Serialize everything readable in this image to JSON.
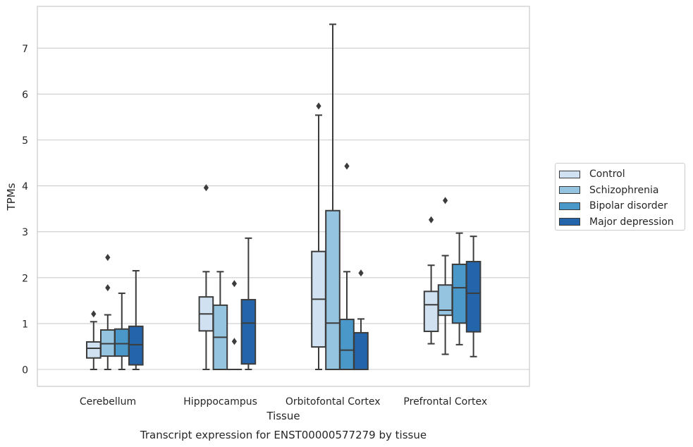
{
  "chart_data": {
    "type": "box",
    "title": "Transcript expression for ENST00000577279 by tissue",
    "xlabel": "Tissue",
    "ylabel": "TPMs",
    "ylim": [
      -0.35,
      7.85
    ],
    "yticks": [
      0,
      1,
      2,
      3,
      4,
      5,
      6,
      7
    ],
    "grid": true,
    "legend_position": "right",
    "categories": [
      "Cerebellum",
      "Hipppocampus",
      "Orbitofontal Cortex",
      "Prefrontal Cortex"
    ],
    "series": [
      {
        "name": "Control",
        "color": "#d0e1f2",
        "boxes": [
          {
            "whislo": 0.0,
            "q1": 0.25,
            "med": 0.46,
            "q3": 0.6,
            "whishi": 1.04,
            "fliers": [
              1.21
            ]
          },
          {
            "whislo": 0.0,
            "q1": 0.84,
            "med": 1.21,
            "q3": 1.58,
            "whishi": 2.13,
            "fliers": [
              3.96
            ]
          },
          {
            "whislo": 0.0,
            "q1": 0.49,
            "med": 1.53,
            "q3": 2.57,
            "whishi": 5.54,
            "fliers": [
              5.74
            ]
          },
          {
            "whislo": 0.56,
            "q1": 0.83,
            "med": 1.41,
            "q3": 1.7,
            "whishi": 2.27,
            "fliers": [
              3.26
            ]
          }
        ]
      },
      {
        "name": "Schizophrenia",
        "color": "#94c4df",
        "boxes": [
          {
            "whislo": 0.0,
            "q1": 0.29,
            "med": 0.56,
            "q3": 0.86,
            "whishi": 1.19,
            "fliers": [
              1.78,
              2.44
            ]
          },
          {
            "whislo": 0.0,
            "q1": 0.0,
            "med": 0.7,
            "q3": 1.4,
            "whishi": 2.13,
            "fliers": []
          },
          {
            "whislo": 0.0,
            "q1": 0.0,
            "med": 1.01,
            "q3": 3.46,
            "whishi": 7.52,
            "fliers": []
          },
          {
            "whislo": 0.33,
            "q1": 1.18,
            "med": 1.29,
            "q3": 1.84,
            "whishi": 2.48,
            "fliers": [
              3.68
            ]
          }
        ]
      },
      {
        "name": "Bipolar disorder",
        "color": "#4a98c9",
        "boxes": [
          {
            "whislo": 0.0,
            "q1": 0.29,
            "med": 0.56,
            "q3": 0.88,
            "whishi": 1.66,
            "fliers": []
          },
          {
            "whislo": 0.0,
            "q1": 0.0,
            "med": 0.0,
            "q3": 0.0,
            "whishi": 0.0,
            "fliers": [
              0.61,
              1.87
            ]
          },
          {
            "whislo": 0.0,
            "q1": 0.0,
            "med": 0.42,
            "q3": 1.09,
            "whishi": 2.13,
            "fliers": [
              4.43
            ]
          },
          {
            "whislo": 0.54,
            "q1": 1.01,
            "med": 1.78,
            "q3": 2.29,
            "whishi": 2.97,
            "fliers": []
          }
        ]
      },
      {
        "name": "Major depression",
        "color": "#2364aa",
        "boxes": [
          {
            "whislo": 0.0,
            "q1": 0.1,
            "med": 0.54,
            "q3": 0.94,
            "whishi": 2.15,
            "fliers": []
          },
          {
            "whislo": 0.0,
            "q1": 0.12,
            "med": 1.01,
            "q3": 1.52,
            "whishi": 2.86,
            "fliers": []
          },
          {
            "whislo": 0.0,
            "q1": 0.0,
            "med": 0.0,
            "q3": 0.8,
            "whishi": 1.1,
            "fliers": [
              2.1
            ]
          },
          {
            "whislo": 0.28,
            "q1": 0.82,
            "med": 1.66,
            "q3": 2.35,
            "whishi": 2.9,
            "fliers": []
          }
        ]
      }
    ]
  }
}
